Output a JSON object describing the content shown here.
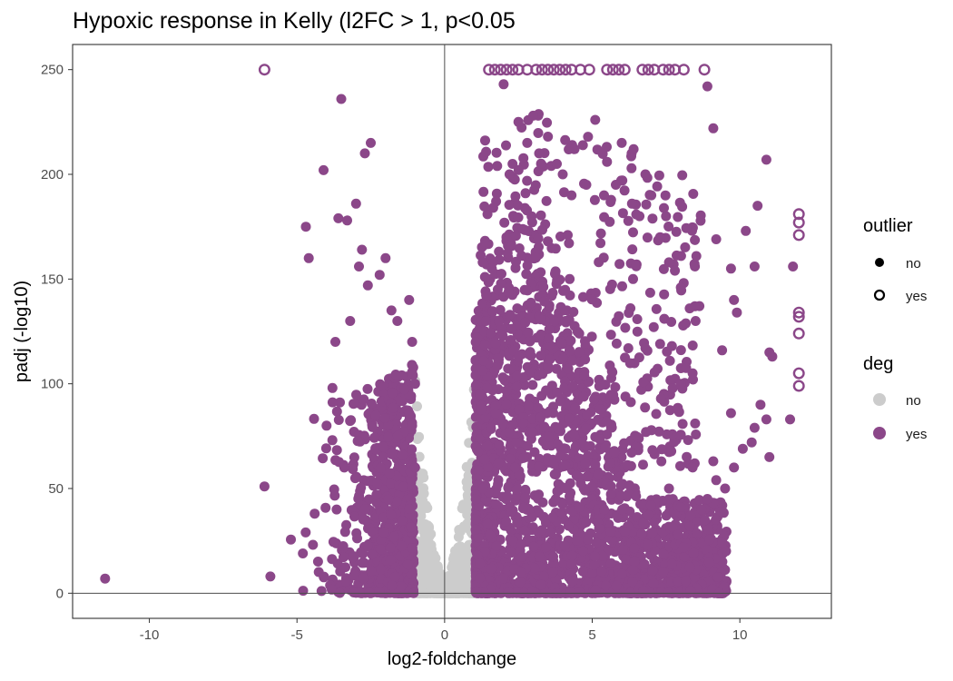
{
  "chart_data": {
    "type": "scatter",
    "title": "Hypoxic response in Kelly (l2FC > 1, p<0.05",
    "xlabel": "log2-foldchange",
    "ylabel": "padj (-log10)",
    "xlim": [
      -12.6,
      13.1
    ],
    "ylim": [
      -12,
      262
    ],
    "x_ticks": [
      -10,
      -5,
      0,
      5,
      10
    ],
    "y_ticks": [
      0,
      50,
      100,
      150,
      200,
      250
    ],
    "x_tick_labels": [
      "-10",
      "-5",
      "0",
      "5",
      "10"
    ],
    "y_tick_labels": [
      "0",
      "50",
      "100",
      "150",
      "200",
      "250"
    ],
    "reference_lines": {
      "x": 0,
      "y": 0
    },
    "grid": false,
    "colors": {
      "deg_no": "#cccccc",
      "deg_yes": "#8b4789",
      "outlier_ring": "#8b4789",
      "axis_line": "#4d4d4d"
    },
    "legends": [
      {
        "title": "outlier",
        "placement": "right",
        "items": [
          {
            "label": "no",
            "shape": "filled-circle",
            "color": "#000000"
          },
          {
            "label": "yes",
            "shape": "open-circle",
            "color": "#000000"
          }
        ]
      },
      {
        "title": "deg",
        "placement": "right",
        "items": [
          {
            "label": "no",
            "shape": "filled-circle",
            "color": "#cccccc"
          },
          {
            "label": "yes",
            "shape": "filled-circle",
            "color": "#8b4789"
          }
        ]
      }
    ],
    "series": [
      {
        "deg": "yes",
        "outlier": "yes",
        "points": [
          [
            -6.1,
            250
          ],
          [
            1.5,
            250
          ],
          [
            1.7,
            250
          ],
          [
            1.9,
            250
          ],
          [
            2.1,
            250
          ],
          [
            2.3,
            250
          ],
          [
            2.5,
            250
          ],
          [
            2.8,
            250
          ],
          [
            3.1,
            250
          ],
          [
            3.3,
            250
          ],
          [
            3.5,
            250
          ],
          [
            3.7,
            250
          ],
          [
            3.9,
            250
          ],
          [
            4.1,
            250
          ],
          [
            4.3,
            250
          ],
          [
            4.6,
            250
          ],
          [
            4.9,
            250
          ],
          [
            5.5,
            250
          ],
          [
            5.7,
            250
          ],
          [
            5.9,
            250
          ],
          [
            6.1,
            250
          ],
          [
            6.7,
            250
          ],
          [
            6.9,
            250
          ],
          [
            7.1,
            250
          ],
          [
            7.4,
            250
          ],
          [
            7.6,
            250
          ],
          [
            7.8,
            250
          ],
          [
            8.1,
            250
          ],
          [
            8.8,
            250
          ],
          [
            12,
            181
          ],
          [
            12,
            177
          ],
          [
            12,
            171
          ],
          [
            12,
            134
          ],
          [
            12,
            132
          ],
          [
            12,
            124
          ],
          [
            12,
            105
          ],
          [
            12,
            99
          ]
        ]
      },
      {
        "deg": "yes",
        "outlier": "no",
        "points": [
          [
            -11.5,
            7
          ],
          [
            -6.1,
            51
          ],
          [
            -5.9,
            8
          ],
          [
            -4.8,
            19
          ],
          [
            -4.7,
            175
          ],
          [
            -4.6,
            160
          ],
          [
            -4.4,
            38
          ],
          [
            -4.1,
            202
          ],
          [
            -4.0,
            80
          ],
          [
            -3.8,
            98
          ],
          [
            -3.7,
            120
          ],
          [
            -3.6,
            179
          ],
          [
            -3.5,
            236
          ],
          [
            -3.4,
            60
          ],
          [
            -3.3,
            178
          ],
          [
            -3.2,
            130
          ],
          [
            -3.0,
            186
          ],
          [
            -2.9,
            156
          ],
          [
            -2.8,
            164
          ],
          [
            -2.7,
            210
          ],
          [
            -2.6,
            147
          ],
          [
            -2.5,
            215
          ],
          [
            -2.2,
            152
          ],
          [
            -2.0,
            160
          ],
          [
            -1.8,
            135
          ],
          [
            -1.6,
            130
          ],
          [
            -1.2,
            140
          ],
          [
            -1.1,
            120
          ],
          [
            -1.0,
            100
          ],
          [
            -1.1,
            80
          ],
          [
            -1.0,
            60
          ],
          [
            1.2,
            95
          ],
          [
            1.3,
            50
          ],
          [
            1.4,
            130
          ],
          [
            1.6,
            155
          ],
          [
            1.8,
            145
          ],
          [
            2.0,
            243
          ],
          [
            2.2,
            200
          ],
          [
            2.5,
            225
          ],
          [
            2.8,
            215
          ],
          [
            3.0,
            228
          ],
          [
            3.2,
            210
          ],
          [
            3.5,
            218
          ],
          [
            3.8,
            205
          ],
          [
            4.0,
            200
          ],
          [
            4.3,
            190
          ],
          [
            4.4,
            212
          ],
          [
            4.8,
            195
          ],
          [
            5.1,
            226
          ],
          [
            5.4,
            190
          ],
          [
            5.5,
            206
          ],
          [
            5.8,
            195
          ],
          [
            6.0,
            215
          ],
          [
            6.4,
            212
          ],
          [
            6.6,
            180
          ],
          [
            6.8,
            200
          ],
          [
            7.0,
            190
          ],
          [
            7.3,
            170
          ],
          [
            7.5,
            180
          ],
          [
            7.6,
            158
          ],
          [
            7.8,
            154
          ],
          [
            8.0,
            146
          ],
          [
            8.3,
            136
          ],
          [
            8.5,
            130
          ],
          [
            8.9,
            242
          ],
          [
            9.1,
            222
          ],
          [
            9.2,
            169
          ],
          [
            9.7,
            155
          ],
          [
            9.8,
            140
          ],
          [
            9.9,
            134
          ],
          [
            10.2,
            173
          ],
          [
            10.5,
            156
          ],
          [
            10.6,
            185
          ],
          [
            10.9,
            207
          ],
          [
            11.0,
            115
          ],
          [
            11.1,
            113
          ],
          [
            11.8,
            156
          ],
          [
            11.7,
            83
          ],
          [
            6.8,
            117
          ],
          [
            7.3,
            119
          ],
          [
            7.7,
            118
          ],
          [
            8.0,
            100
          ],
          [
            8.4,
            105
          ],
          [
            9.4,
            116
          ],
          [
            9.7,
            86
          ],
          [
            10.1,
            69
          ],
          [
            10.5,
            79
          ],
          [
            10.7,
            90
          ],
          [
            10.9,
            83
          ],
          [
            11.0,
            65
          ],
          [
            9.1,
            63
          ],
          [
            8.4,
            60
          ],
          [
            7.6,
            50
          ],
          [
            7.1,
            34
          ],
          [
            8.1,
            22
          ],
          [
            7.7,
            14
          ],
          [
            7.4,
            10
          ],
          [
            8.9,
            45
          ],
          [
            9.5,
            50
          ],
          [
            10.4,
            72
          ],
          [
            9.8,
            60
          ],
          [
            8.7,
            40
          ],
          [
            8.3,
            32
          ],
          [
            7.9,
            28
          ],
          [
            9.2,
            54
          ]
        ]
      }
    ]
  }
}
